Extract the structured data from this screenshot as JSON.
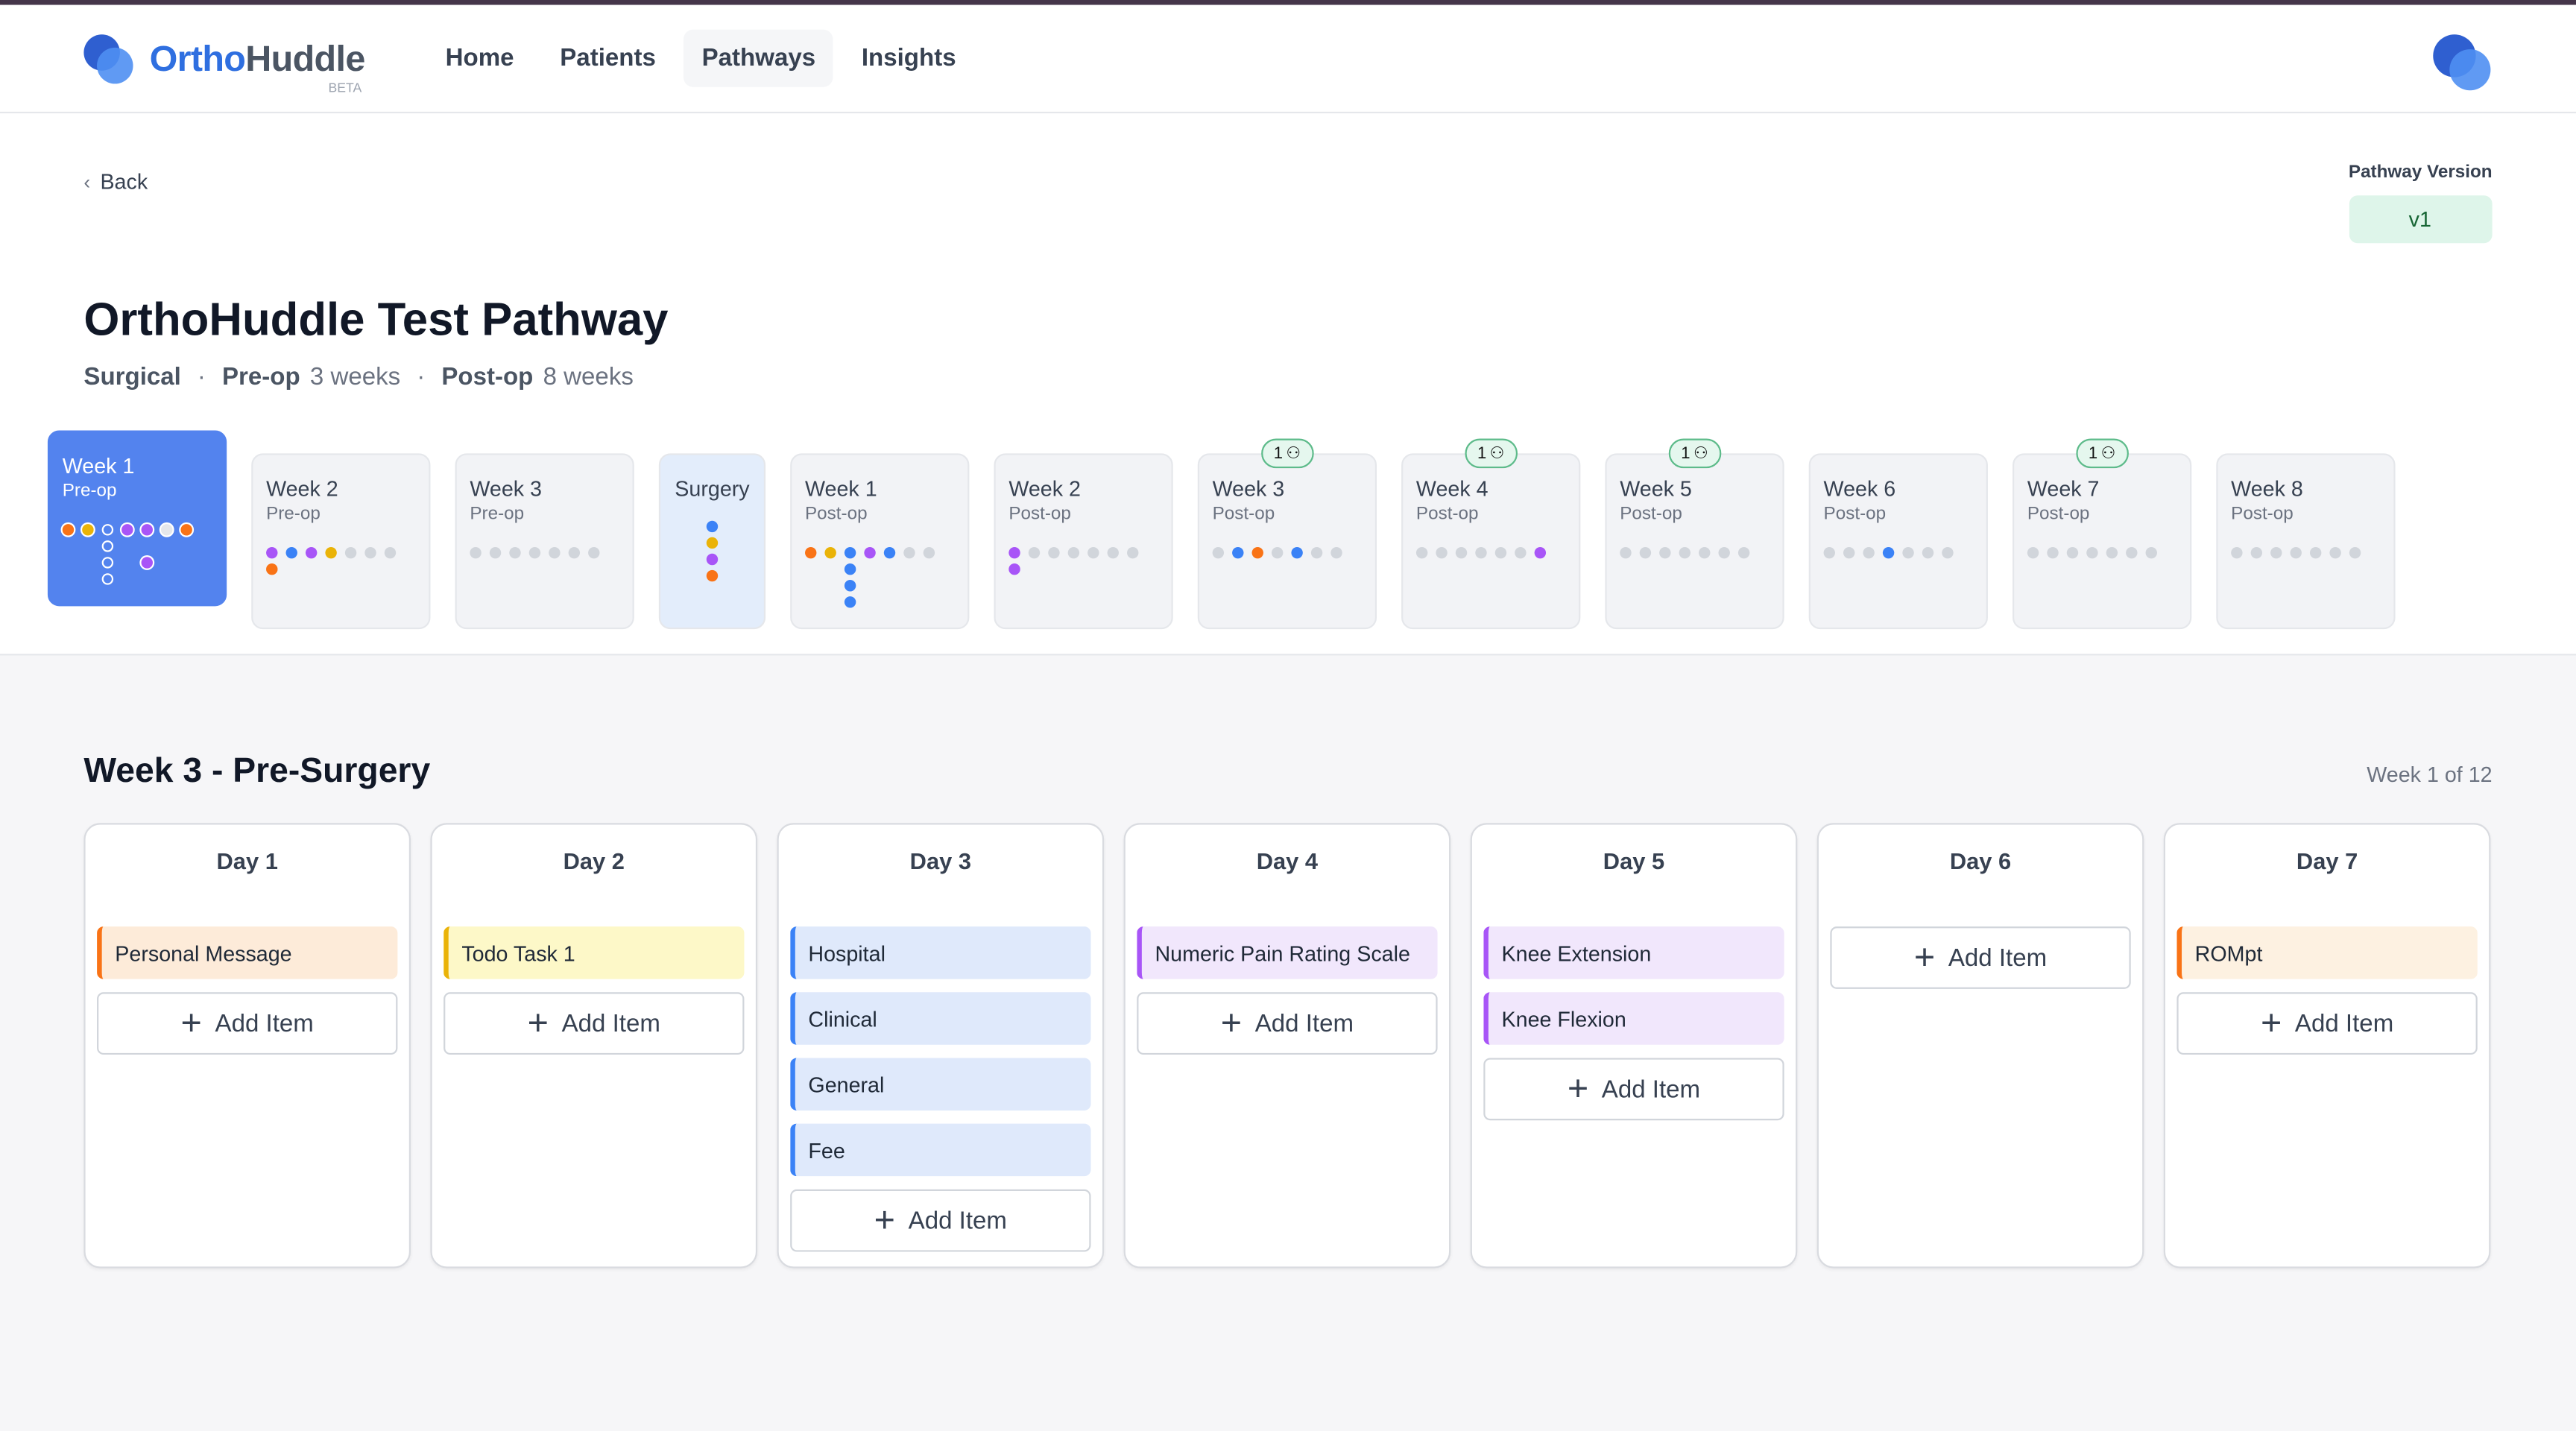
{
  "app": {
    "brand_a": "Ortho",
    "brand_b": "Huddle",
    "beta": "BETA"
  },
  "nav": [
    "Home",
    "Patients",
    "Pathways",
    "Insights"
  ],
  "back": "Back",
  "pathway_version": {
    "label": "Pathway Version",
    "value": "v1"
  },
  "title": "OrthoHuddle Test Pathway",
  "meta": {
    "type": "Surgical",
    "sep": "·",
    "preop_label": "Pre-op",
    "preop_value": "3 weeks",
    "postop_label": "Post-op",
    "postop_value": "8 weeks"
  },
  "colors": {
    "o": "#f97316",
    "y": "#eab308",
    "b": "#3b82f6",
    "p": "#a855f7",
    "g": "#d1d5db",
    "w": "#e5e7eb"
  },
  "weeks": [
    {
      "title": "Week 1",
      "sub": "Pre-op",
      "active": true,
      "cols": [
        [
          "o"
        ],
        [
          "y"
        ],
        [
          "h",
          "h",
          "h",
          "h"
        ],
        [
          "p"
        ],
        [
          "p",
          "n",
          "p"
        ],
        [
          "w"
        ],
        [
          "o"
        ]
      ]
    },
    {
      "title": "Week 2",
      "sub": "Pre-op",
      "cols": [
        [
          "p",
          "o"
        ],
        [
          "b"
        ],
        [
          "p"
        ],
        [
          "y"
        ],
        [
          "g"
        ],
        [
          "g"
        ],
        [
          "g"
        ]
      ]
    },
    {
      "title": "Week 3",
      "sub": "Pre-op",
      "cols": [
        [
          "g"
        ],
        [
          "g"
        ],
        [
          "g"
        ],
        [
          "g"
        ],
        [
          "g"
        ],
        [
          "g"
        ],
        [
          "g"
        ]
      ]
    },
    {
      "title": "Surgery",
      "sub": "",
      "surgery": true,
      "cols": [
        [
          "b",
          "y",
          "p",
          "o"
        ]
      ]
    },
    {
      "title": "Week 1",
      "sub": "Post-op",
      "cols": [
        [
          "o"
        ],
        [
          "y"
        ],
        [
          "b",
          "b",
          "b",
          "b"
        ],
        [
          "p"
        ],
        [
          "b"
        ],
        [
          "g"
        ],
        [
          "g"
        ]
      ]
    },
    {
      "title": "Week 2",
      "sub": "Post-op",
      "cols": [
        [
          "p",
          "p"
        ],
        [
          "g"
        ],
        [
          "g"
        ],
        [
          "g"
        ],
        [
          "g"
        ],
        [
          "g"
        ],
        [
          "g"
        ]
      ]
    },
    {
      "title": "Week 3",
      "sub": "Post-op",
      "badge": "1",
      "cols": [
        [
          "g"
        ],
        [
          "b"
        ],
        [
          "o"
        ],
        [
          "g"
        ],
        [
          "b"
        ],
        [
          "g"
        ],
        [
          "g"
        ]
      ]
    },
    {
      "title": "Week 4",
      "sub": "Post-op",
      "badge": "1",
      "cols": [
        [
          "g"
        ],
        [
          "g"
        ],
        [
          "g"
        ],
        [
          "g"
        ],
        [
          "g"
        ],
        [
          "g"
        ],
        [
          "p"
        ]
      ]
    },
    {
      "title": "Week 5",
      "sub": "Post-op",
      "badge": "1",
      "cols": [
        [
          "g"
        ],
        [
          "g"
        ],
        [
          "g"
        ],
        [
          "g"
        ],
        [
          "g"
        ],
        [
          "g"
        ],
        [
          "g"
        ]
      ]
    },
    {
      "title": "Week 6",
      "sub": "Post-op",
      "cols": [
        [
          "g"
        ],
        [
          "g"
        ],
        [
          "g"
        ],
        [
          "b"
        ],
        [
          "g"
        ],
        [
          "g"
        ],
        [
          "g"
        ]
      ]
    },
    {
      "title": "Week 7",
      "sub": "Post-op",
      "badge": "1",
      "cols": [
        [
          "g"
        ],
        [
          "g"
        ],
        [
          "g"
        ],
        [
          "g"
        ],
        [
          "g"
        ],
        [
          "g"
        ],
        [
          "g"
        ]
      ]
    },
    {
      "title": "Week 8",
      "sub": "Post-op",
      "cols": [
        [
          "g"
        ],
        [
          "g"
        ],
        [
          "g"
        ],
        [
          "g"
        ],
        [
          "g"
        ],
        [
          "g"
        ],
        [
          "g"
        ]
      ]
    }
  ],
  "section": {
    "title": "Week 3 - Pre-Surgery",
    "counter": "Week 1 of 12"
  },
  "add_label": "Add Item",
  "item_styles": {
    "orange": [
      "#f97316",
      "#fdebd9"
    ],
    "yellow": [
      "#eab308",
      "#fdf8c8"
    ],
    "blue": [
      "#3b82f6",
      "#dfe9fb"
    ],
    "purple": [
      "#a855f7",
      "#f1e7fc"
    ],
    "peach": [
      "#f97316",
      "#fdf1e1"
    ]
  },
  "days": [
    {
      "title": "Day 1",
      "items": [
        {
          "label": "Personal Message",
          "style": "orange"
        }
      ]
    },
    {
      "title": "Day 2",
      "items": [
        {
          "label": "Todo Task 1",
          "style": "yellow"
        }
      ]
    },
    {
      "title": "Day 3",
      "items": [
        {
          "label": "Hospital",
          "style": "blue"
        },
        {
          "label": "Clinical",
          "style": "blue"
        },
        {
          "label": "General",
          "style": "blue"
        },
        {
          "label": "Fee",
          "style": "blue"
        }
      ]
    },
    {
      "title": "Day 4",
      "items": [
        {
          "label": "Numeric Pain Rating Scale",
          "style": "purple"
        }
      ]
    },
    {
      "title": "Day 5",
      "items": [
        {
          "label": "Knee Extension",
          "style": "purple"
        },
        {
          "label": "Knee Flexion",
          "style": "purple"
        }
      ]
    },
    {
      "title": "Day 6",
      "items": []
    },
    {
      "title": "Day 7",
      "items": [
        {
          "label": "ROMpt",
          "style": "peach"
        }
      ]
    }
  ]
}
